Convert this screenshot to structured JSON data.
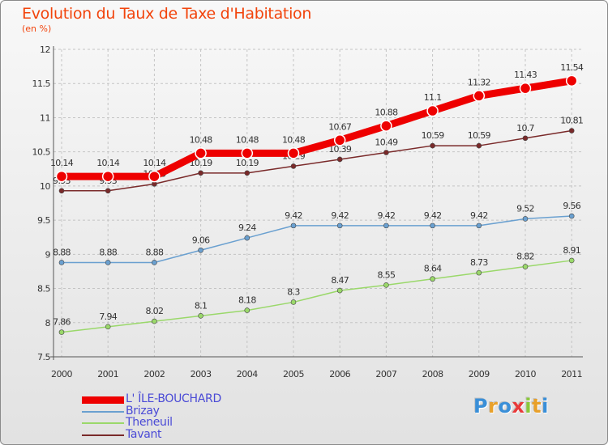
{
  "header": {
    "title": "Evolution du Taux de Taxe d'Habitation",
    "subtitle": "(en %)"
  },
  "chart_data": {
    "type": "line",
    "categories": [
      "2000",
      "2001",
      "2002",
      "2003",
      "2004",
      "2005",
      "2006",
      "2007",
      "2008",
      "2009",
      "2010",
      "2011"
    ],
    "yticks": [
      "7.5",
      "8",
      "8.5",
      "9",
      "9.5",
      "10",
      "10.5",
      "11",
      "11.5",
      "12"
    ],
    "ylim": [
      7.5,
      12
    ],
    "grid": true,
    "legend_position": "bottom-left",
    "series": [
      {
        "name": "L' ÎLE-BOUCHARD",
        "color": "#ee0000",
        "values": [
          10.14,
          10.14,
          10.14,
          10.48,
          10.48,
          10.48,
          10.67,
          10.88,
          11.1,
          11.32,
          11.43,
          11.54
        ],
        "labels": [
          "10.14",
          "10.14",
          "10.14",
          "10.48",
          "10.48",
          "10.48",
          "10.67",
          "10.88",
          "11.1",
          "11.32",
          "11.43",
          "11.54"
        ]
      },
      {
        "name": "Brizay",
        "color": "#6aa0d0",
        "values": [
          8.88,
          8.88,
          8.88,
          9.06,
          9.24,
          9.42,
          9.42,
          9.42,
          9.42,
          9.42,
          9.52,
          9.56
        ],
        "labels": [
          "8.88",
          "8.88",
          "8.88",
          "9.06",
          "9.24",
          "9.42",
          "9.42",
          "9.42",
          "9.42",
          "9.42",
          "9.52",
          "9.56"
        ]
      },
      {
        "name": "Theneuil",
        "color": "#9ad86a",
        "values": [
          7.86,
          7.94,
          8.02,
          8.1,
          8.18,
          8.3,
          8.47,
          8.55,
          8.64,
          8.73,
          8.82,
          8.91
        ],
        "labels": [
          "7.86",
          "7.94",
          "8.02",
          "8.1",
          "8.18",
          "8.3",
          "8.47",
          "8.55",
          "8.64",
          "8.73",
          "8.82",
          "8.91"
        ]
      },
      {
        "name": "Tavant",
        "color": "#7a2a2a",
        "values": [
          9.93,
          9.93,
          10.03,
          10.19,
          10.19,
          10.29,
          10.39,
          10.49,
          10.59,
          10.59,
          10.7,
          10.81
        ],
        "labels": [
          "9.93",
          "9.93",
          "10.03",
          "10.19",
          "10.19",
          "10.29",
          "10.39",
          "10.49",
          "10.59",
          "10.59",
          "10.7",
          "10.81"
        ]
      }
    ]
  },
  "logo": {
    "letters": [
      "P",
      "r",
      "o",
      "x",
      "i",
      "t",
      "i"
    ],
    "colors": [
      "#3a8fd8",
      "#e8a02a",
      "#3a8fd8",
      "#e83a3a",
      "#8ac83a",
      "#e8a02a",
      "#3a8fd8"
    ]
  }
}
